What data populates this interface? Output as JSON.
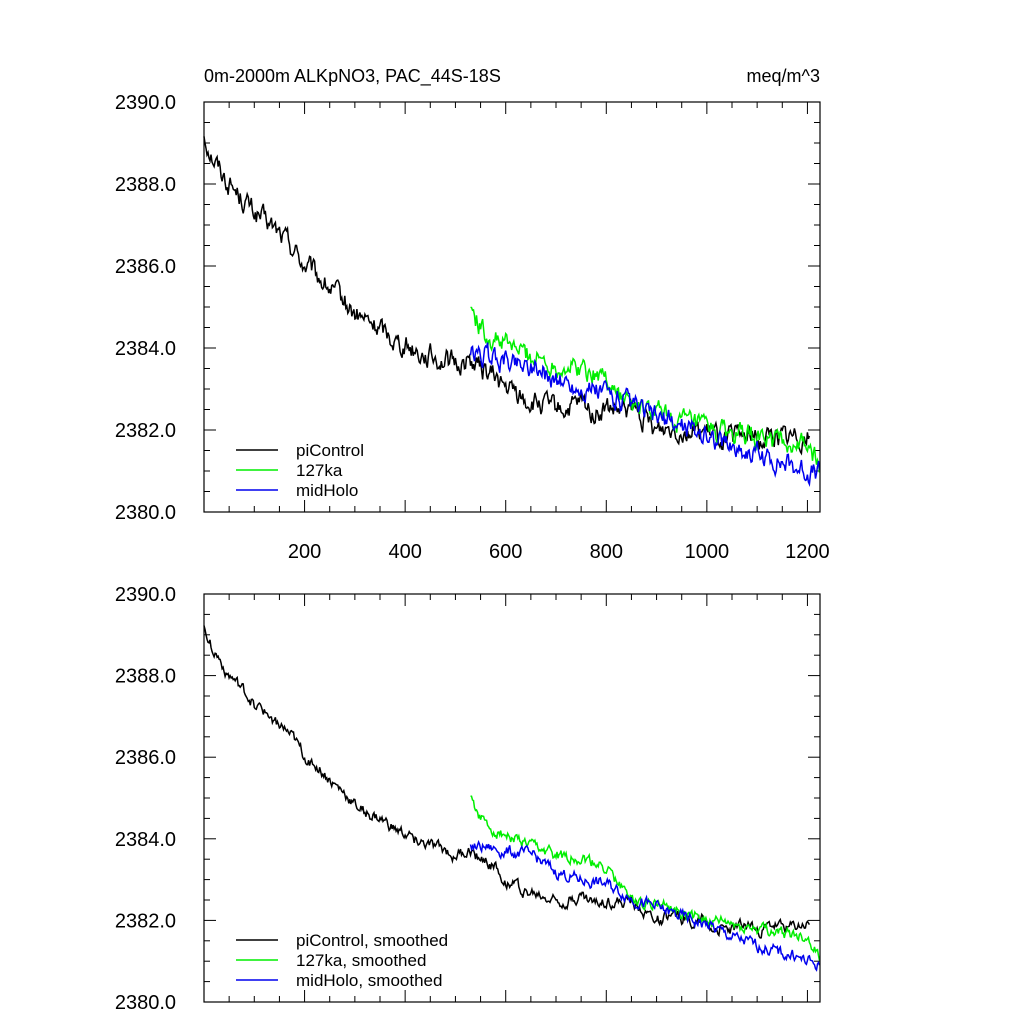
{
  "colors": {
    "piControl": "#000000",
    "127ka": "#00ee00",
    "midHolo": "#0000ee"
  },
  "chart_data": [
    {
      "type": "line",
      "title": "0m-2000m ALKpNO3, PAC_44S-18S",
      "units": "meq/m^3",
      "xlim": [
        0,
        1225
      ],
      "ylim": [
        2380.0,
        2390.0
      ],
      "y_ticks": [
        "2380.0",
        "2382.0",
        "2384.0",
        "2386.0",
        "2388.0",
        "2390.0"
      ],
      "x_ticks": [
        "200",
        "400",
        "600",
        "800",
        "1000",
        "1200"
      ],
      "legend_position": "bottom-left",
      "series": [
        {
          "name": "piControl",
          "color": "#000000",
          "x": [
            0,
            20,
            50,
            80,
            100,
            130,
            150,
            180,
            200,
            230,
            260,
            280,
            300,
            330,
            360,
            380,
            400,
            430,
            450,
            480,
            500,
            530,
            550,
            580,
            600,
            620,
            640,
            670,
            700,
            720,
            750,
            780,
            800,
            830,
            850,
            880,
            900,
            930,
            960,
            990,
            1000,
            1030,
            1060,
            1090,
            1100,
            1130,
            1160,
            1190,
            1205
          ],
          "y": [
            2389.2,
            2388.6,
            2388.0,
            2387.6,
            2387.3,
            2387.0,
            2386.8,
            2386.4,
            2386.0,
            2385.7,
            2385.3,
            2385.1,
            2384.8,
            2384.6,
            2384.4,
            2384.2,
            2384.1,
            2383.9,
            2383.8,
            2383.7,
            2383.6,
            2383.7,
            2383.5,
            2383.3,
            2383.0,
            2382.9,
            2382.7,
            2382.6,
            2382.5,
            2382.5,
            2382.6,
            2382.4,
            2382.5,
            2382.4,
            2382.5,
            2382.2,
            2382.0,
            2382.1,
            2382.0,
            2382.0,
            2381.9,
            2381.8,
            2381.8,
            2381.9,
            2381.7,
            2381.9,
            2381.8,
            2381.9,
            2381.9
          ]
        },
        {
          "name": "127ka",
          "color": "#00ee00",
          "x": [
            530,
            560,
            600,
            650,
            700,
            750,
            800,
            830,
            860,
            900,
            950,
            1000,
            1050,
            1100,
            1150,
            1200,
            1225
          ],
          "y": [
            2385.0,
            2384.3,
            2384.1,
            2383.8,
            2383.6,
            2383.5,
            2383.3,
            2382.8,
            2382.5,
            2382.4,
            2382.2,
            2382.0,
            2381.9,
            2381.8,
            2381.7,
            2381.6,
            2381.1
          ]
        },
        {
          "name": "midHolo",
          "color": "#0000ee",
          "x": [
            530,
            560,
            600,
            650,
            700,
            750,
            800,
            830,
            860,
            900,
            950,
            1000,
            1050,
            1100,
            1150,
            1200,
            1225
          ],
          "y": [
            2383.8,
            2383.8,
            2383.7,
            2383.6,
            2383.2,
            2383.0,
            2382.9,
            2382.7,
            2382.5,
            2382.3,
            2382.1,
            2381.9,
            2381.6,
            2381.4,
            2381.2,
            2381.0,
            2380.9
          ]
        }
      ],
      "legend": [
        "piControl",
        "127ka",
        "midHolo"
      ]
    },
    {
      "type": "line",
      "title": "",
      "xlim": [
        0,
        1225
      ],
      "ylim": [
        2380.0,
        2390.0
      ],
      "y_ticks": [
        "2380.0",
        "2382.0",
        "2384.0",
        "2386.0",
        "2388.0",
        "2390.0"
      ],
      "legend_position": "bottom-left",
      "series": [
        {
          "name": "piControl, smoothed",
          "color": "#000000",
          "x": [
            0,
            20,
            50,
            80,
            100,
            130,
            150,
            180,
            200,
            230,
            260,
            280,
            300,
            330,
            360,
            380,
            400,
            430,
            450,
            480,
            500,
            530,
            550,
            580,
            600,
            620,
            640,
            670,
            700,
            720,
            750,
            780,
            800,
            830,
            850,
            880,
            900,
            930,
            960,
            990,
            1000,
            1030,
            1060,
            1090,
            1100,
            1130,
            1160,
            1190,
            1205
          ],
          "y": [
            2389.2,
            2388.6,
            2388.0,
            2387.6,
            2387.3,
            2387.0,
            2386.8,
            2386.4,
            2386.0,
            2385.7,
            2385.3,
            2385.1,
            2384.8,
            2384.6,
            2384.4,
            2384.2,
            2384.1,
            2383.9,
            2383.8,
            2383.7,
            2383.6,
            2383.7,
            2383.5,
            2383.3,
            2383.0,
            2382.9,
            2382.7,
            2382.6,
            2382.5,
            2382.5,
            2382.6,
            2382.4,
            2382.5,
            2382.4,
            2382.5,
            2382.2,
            2382.0,
            2382.1,
            2382.0,
            2382.0,
            2381.9,
            2381.8,
            2381.8,
            2381.9,
            2381.7,
            2381.9,
            2381.8,
            2381.9,
            2381.9
          ]
        },
        {
          "name": "127ka, smoothed",
          "color": "#00ee00",
          "x": [
            530,
            560,
            600,
            650,
            700,
            750,
            800,
            830,
            860,
            900,
            950,
            1000,
            1050,
            1100,
            1150,
            1200,
            1225
          ],
          "y": [
            2385.0,
            2384.3,
            2384.1,
            2383.8,
            2383.6,
            2383.5,
            2383.3,
            2382.8,
            2382.5,
            2382.4,
            2382.2,
            2382.0,
            2381.9,
            2381.8,
            2381.7,
            2381.6,
            2381.1
          ]
        },
        {
          "name": "midHolo, smoothed",
          "color": "#0000ee",
          "x": [
            530,
            560,
            600,
            650,
            700,
            750,
            800,
            830,
            860,
            900,
            950,
            1000,
            1050,
            1100,
            1150,
            1200,
            1225
          ],
          "y": [
            2383.8,
            2383.8,
            2383.7,
            2383.6,
            2383.2,
            2383.0,
            2382.9,
            2382.7,
            2382.5,
            2382.3,
            2382.1,
            2381.9,
            2381.6,
            2381.4,
            2381.2,
            2381.0,
            2380.9
          ]
        }
      ],
      "legend": [
        "piControl, smoothed",
        "127ka, smoothed",
        "midHolo, smoothed"
      ]
    }
  ]
}
